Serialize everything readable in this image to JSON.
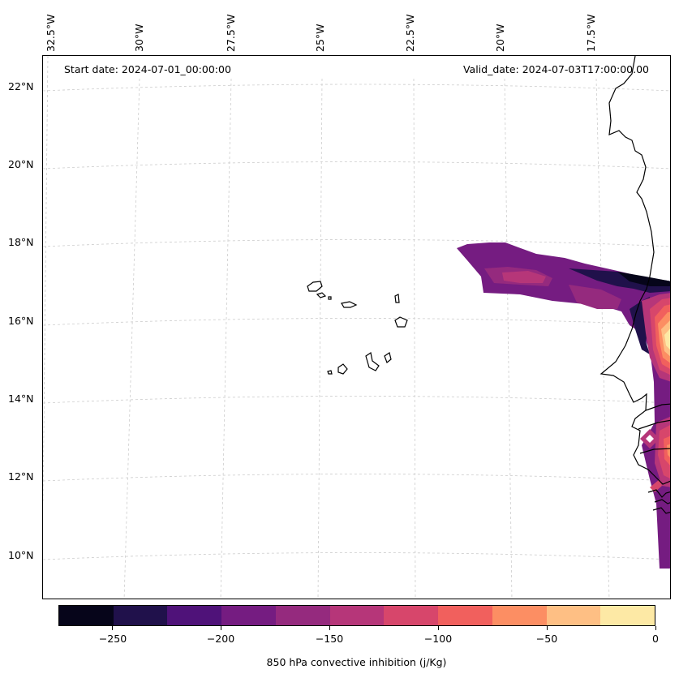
{
  "map": {
    "start_date": "Start date: 2024-07-01_00:00:00",
    "valid_date": "Valid_date: 2024-07-03T17:00:00.00",
    "lon_labels": [
      "32.5°W",
      "30°W",
      "27.5°W",
      "25°W",
      "22.5°W",
      "20°W",
      "17.5°W"
    ],
    "lat_labels": [
      "22°N",
      "20°N",
      "18°N",
      "16°N",
      "14°N",
      "12°N",
      "10°N"
    ]
  },
  "colorbar": {
    "title": "850 hPa convective inhibition (j/Kg)",
    "tick_labels": [
      "−250",
      "−200",
      "−150",
      "−100",
      "−50",
      "0"
    ],
    "min": -275,
    "max": 0,
    "colors": [
      "#06051a",
      "#20114b",
      "#4f1279",
      "#751c81",
      "#952a7e",
      "#b63679",
      "#d7466b",
      "#f1605d",
      "#fc8e63",
      "#febf84",
      "#fde9a5"
    ]
  }
}
